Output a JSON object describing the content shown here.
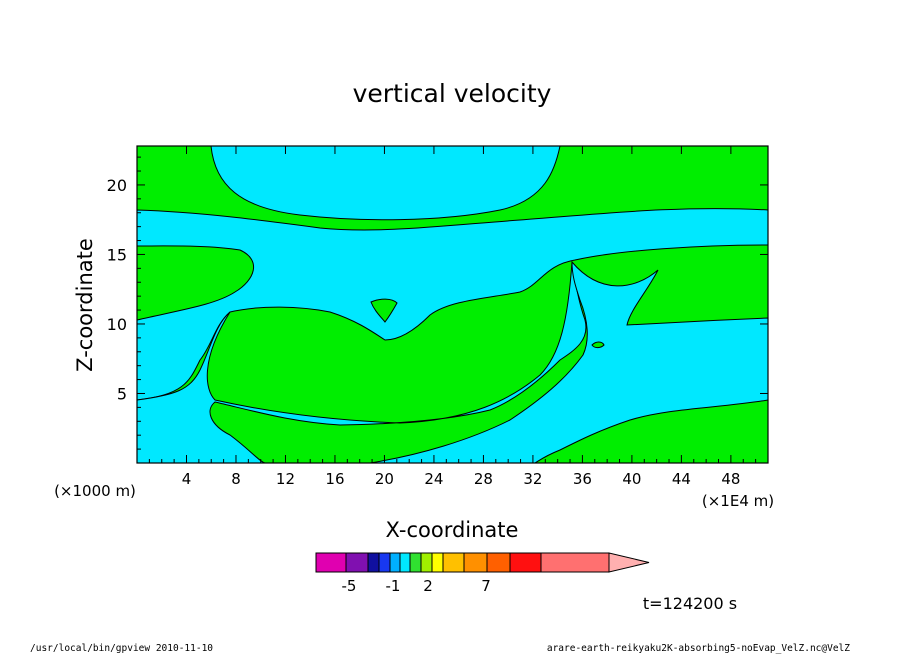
{
  "chart_data": {
    "type": "heatmap",
    "title": "vertical velocity",
    "xlabel": "X-coordinate",
    "ylabel": "Z-coordinate",
    "x_unit_left": "(×1000 m)",
    "x_unit_right": "(×1E4 m)",
    "x_ticks": [
      "4",
      "8",
      "12",
      "16",
      "20",
      "24",
      "28",
      "32",
      "36",
      "40",
      "44",
      "48"
    ],
    "y_ticks": [
      "5",
      "10",
      "15",
      "20"
    ],
    "xlim": [
      0,
      51
    ],
    "ylim": [
      0,
      22.8
    ],
    "colorbar": {
      "colors": [
        "#e000b0",
        "#8010b0",
        "#1010a0",
        "#1838f0",
        "#00b0ff",
        "#00e8ff",
        "#30e030",
        "#a0f000",
        "#ffff00",
        "#ffc000",
        "#ff9000",
        "#ff6000",
        "#ff1010",
        "#ff7070",
        "#ffb0b0"
      ],
      "tick_labels": [
        "-5",
        "-1",
        "2",
        "7"
      ]
    },
    "time_label": "t=124200 s",
    "footer_left": "/usr/local/bin/gpview  2010-11-10",
    "footer_right": "arare-earth-reikyaku2K-absorbing5-noEvap_VelZ.nc@VelZ"
  }
}
